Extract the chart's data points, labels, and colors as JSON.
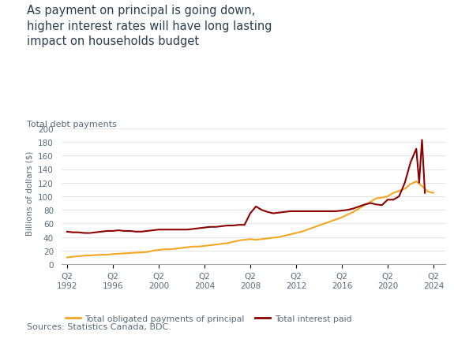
{
  "title_line1": "As payment on principal is going down,",
  "title_line2": "higher interest rates will have long lasting",
  "title_line3": "impact on households budget",
  "subtitle": "Total debt payments",
  "ylabel": "Billions of dollars ($)",
  "source": "Sources: Statistics Canada, BDC.",
  "title_color": "#2b3e50",
  "subtitle_color": "#5a6a7a",
  "source_color": "#5a6a7a",
  "tick_color": "#5a6a7a",
  "background_color": "#ffffff",
  "ylim": [
    0,
    210
  ],
  "yticks": [
    0,
    20,
    40,
    60,
    80,
    100,
    120,
    140,
    160,
    180,
    200
  ],
  "xtick_years": [
    1992,
    1996,
    2000,
    2004,
    2008,
    2012,
    2016,
    2020,
    2024
  ],
  "legend_principal": "Total obligated payments of principal",
  "legend_interest": "Total interest paid",
  "color_principal": "#f5a623",
  "color_interest": "#8b0000",
  "principal_x": [
    1992.5,
    1993.0,
    1993.5,
    1994.0,
    1994.5,
    1995.0,
    1995.5,
    1996.0,
    1996.5,
    1997.0,
    1997.5,
    1998.0,
    1998.5,
    1999.0,
    1999.5,
    2000.0,
    2000.5,
    2001.0,
    2001.5,
    2002.0,
    2002.5,
    2003.0,
    2003.5,
    2004.0,
    2004.5,
    2005.0,
    2005.5,
    2006.0,
    2006.5,
    2007.0,
    2007.5,
    2008.0,
    2008.5,
    2009.0,
    2009.5,
    2010.0,
    2010.5,
    2011.0,
    2011.5,
    2012.0,
    2012.5,
    2013.0,
    2013.5,
    2014.0,
    2014.5,
    2015.0,
    2015.5,
    2016.0,
    2016.5,
    2017.0,
    2017.5,
    2018.0,
    2018.5,
    2019.0,
    2019.5,
    2020.0,
    2020.5,
    2021.0,
    2021.5,
    2022.0,
    2022.5,
    2023.0,
    2023.5,
    2024.0,
    2024.5
  ],
  "principal_y": [
    10,
    11,
    12,
    12.5,
    13,
    13.5,
    14,
    14,
    15,
    15.5,
    16,
    16.5,
    17,
    17.5,
    18,
    20,
    21,
    22,
    22,
    23,
    24,
    25,
    26,
    26,
    27,
    28,
    29,
    30,
    31,
    33,
    35,
    36,
    37,
    36,
    37,
    38,
    39,
    40,
    42,
    44,
    46,
    48,
    51,
    54,
    57,
    60,
    63,
    66,
    69,
    73,
    77,
    82,
    87,
    92,
    97,
    98,
    100,
    105,
    108,
    111,
    118,
    122,
    115,
    107,
    105
  ],
  "interest_x": [
    1992.5,
    1993.0,
    1993.5,
    1994.0,
    1994.5,
    1995.0,
    1995.5,
    1996.0,
    1996.5,
    1997.0,
    1997.5,
    1998.0,
    1998.5,
    1999.0,
    1999.5,
    2000.0,
    2000.5,
    2001.0,
    2001.5,
    2002.0,
    2002.5,
    2003.0,
    2003.5,
    2004.0,
    2004.5,
    2005.0,
    2005.5,
    2006.0,
    2006.5,
    2007.0,
    2007.5,
    2008.0,
    2008.5,
    2009.0,
    2009.5,
    2010.0,
    2010.5,
    2011.0,
    2011.5,
    2012.0,
    2012.5,
    2013.0,
    2013.5,
    2014.0,
    2014.5,
    2015.0,
    2015.5,
    2016.0,
    2016.5,
    2017.0,
    2017.5,
    2018.0,
    2018.5,
    2019.0,
    2019.5,
    2020.0,
    2020.5,
    2021.0,
    2021.5,
    2022.0,
    2022.5,
    2023.0,
    2023.25,
    2023.5,
    2023.75
  ],
  "interest_y": [
    48,
    47,
    47,
    46,
    46,
    47,
    48,
    49,
    49,
    50,
    49,
    49,
    48,
    48,
    49,
    50,
    51,
    51,
    51,
    51,
    51,
    51,
    52,
    53,
    54,
    55,
    55,
    56,
    57,
    57,
    58,
    58,
    75,
    85,
    80,
    77,
    75,
    76,
    77,
    78,
    78,
    78,
    78,
    78,
    78,
    78,
    78,
    78,
    79,
    80,
    82,
    85,
    88,
    90,
    88,
    87,
    95,
    95,
    100,
    120,
    150,
    170,
    120,
    183,
    105
  ]
}
